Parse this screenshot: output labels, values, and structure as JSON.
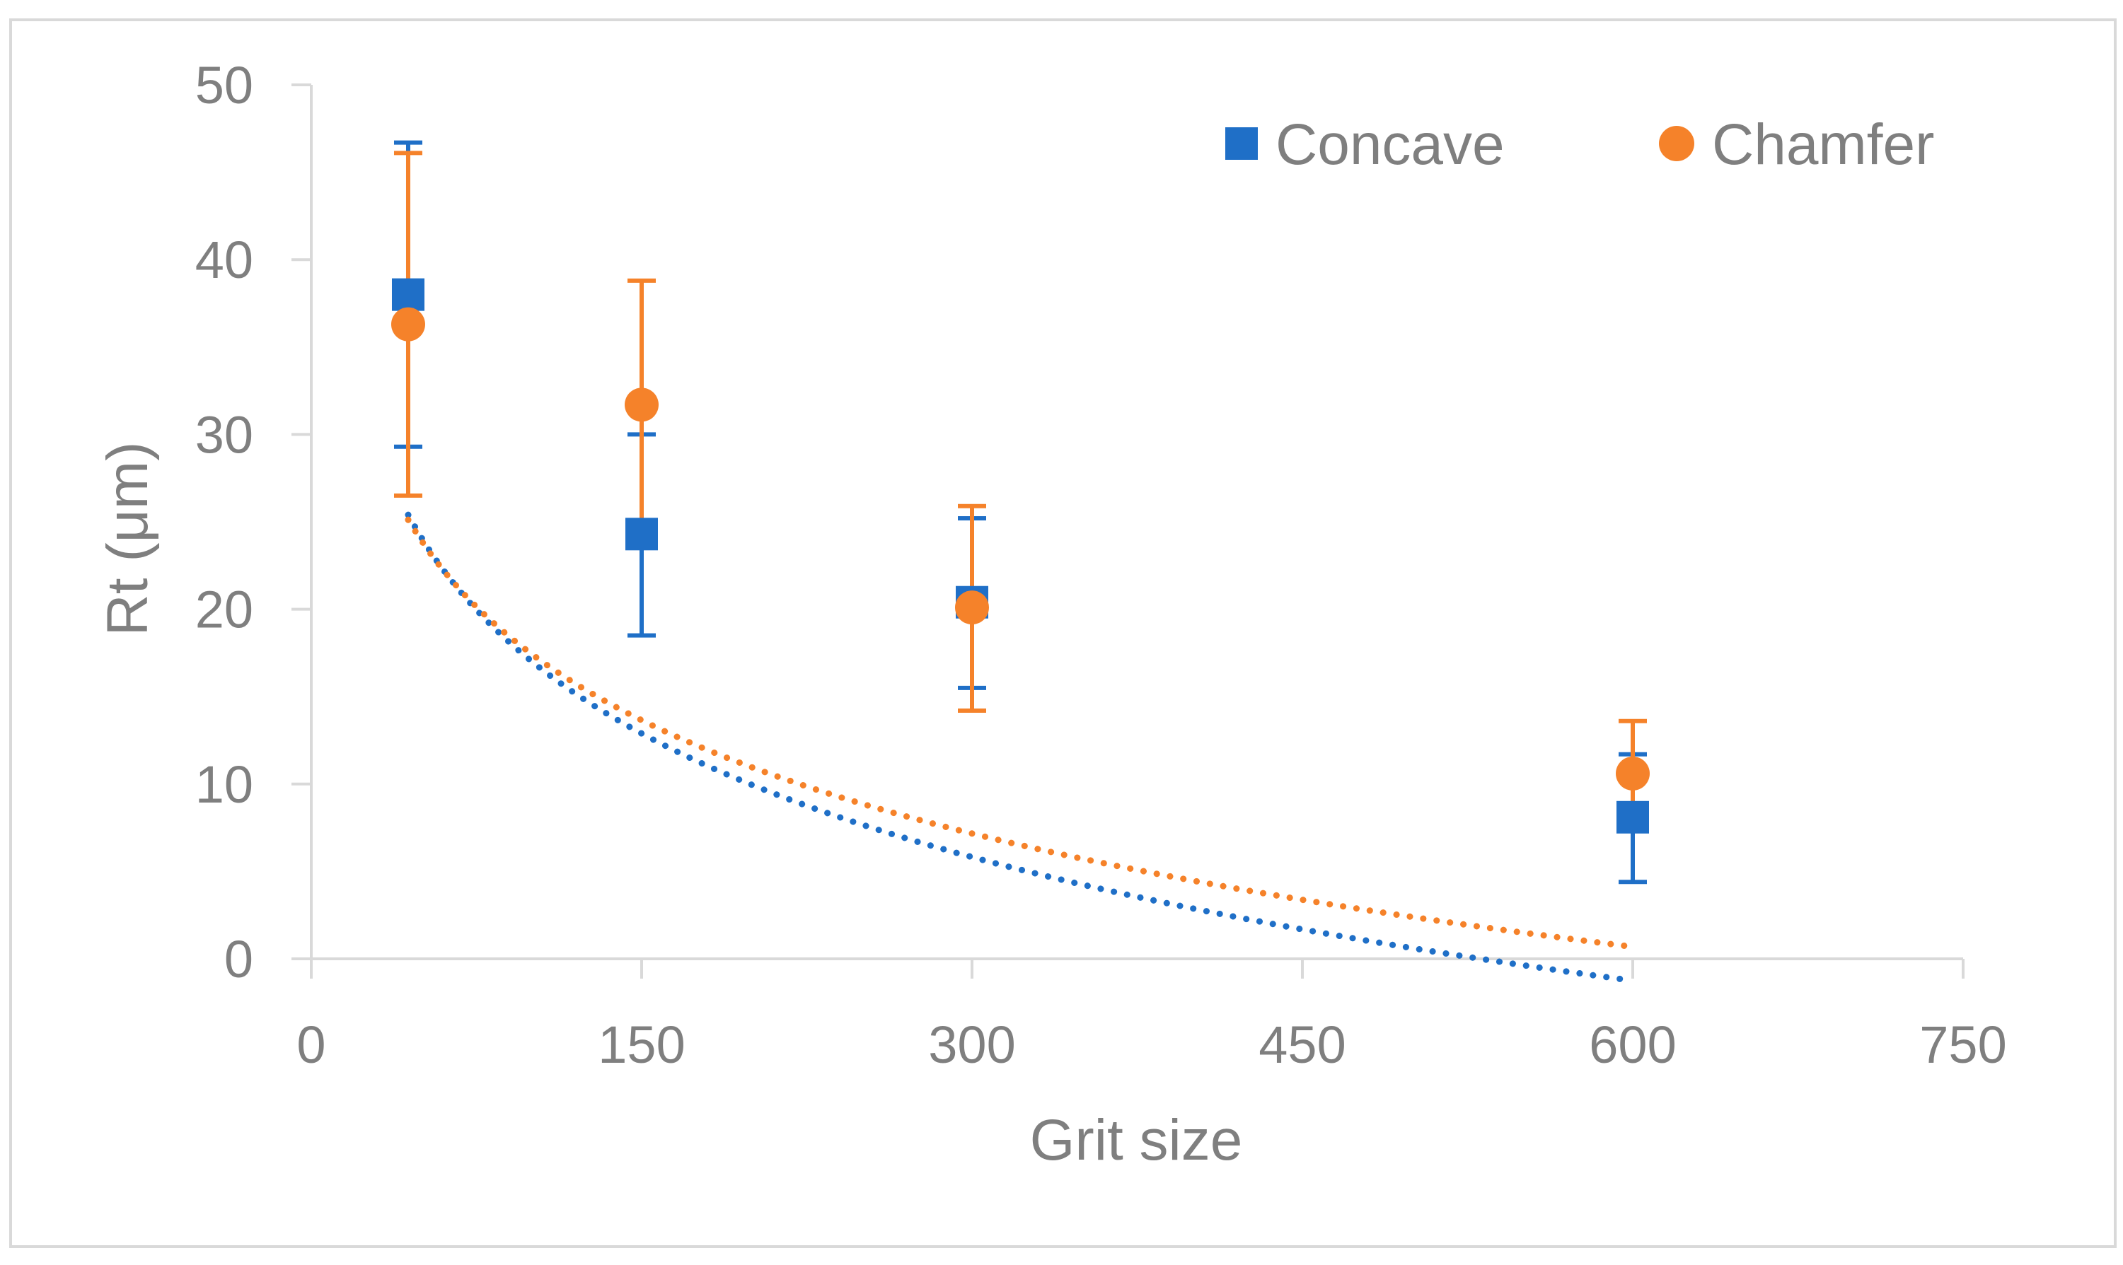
{
  "chart_data": {
    "type": "scatter",
    "title": "",
    "xlabel": "Grit size",
    "ylabel": "Rt (μm)",
    "xlim": [
      0,
      750
    ],
    "ylim": [
      0,
      50
    ],
    "xticks": [
      0,
      150,
      300,
      450,
      600,
      750
    ],
    "yticks": [
      0,
      10,
      20,
      30,
      40,
      50
    ],
    "xtick_labels": [
      "0",
      "150",
      "300",
      "450",
      "600",
      "750"
    ],
    "ytick_labels": [
      "0",
      "10",
      "20",
      "30",
      "40",
      "50"
    ],
    "grid": false,
    "legend_position": "top-right",
    "series": [
      {
        "name": "Concave",
        "marker": "square",
        "color": "#1f6fc7",
        "x": [
          44,
          150,
          300,
          600
        ],
        "y": [
          38.0,
          24.3,
          20.4,
          8.1
        ],
        "error_lower": [
          29.3,
          18.5,
          15.5,
          4.4
        ],
        "error_upper": [
          46.7,
          30.0,
          25.2,
          11.7
        ],
        "trendline": {
          "type": "logarithmic",
          "a": 64.0,
          "b": -10.2
        }
      },
      {
        "name": "Chamfer",
        "marker": "circle",
        "color": "#f5822a",
        "x": [
          44,
          150,
          300,
          600
        ],
        "y": [
          36.3,
          31.7,
          20.1,
          10.6
        ],
        "error_lower": [
          26.5,
          24.5,
          14.2,
          7.6
        ],
        "error_upper": [
          46.1,
          38.8,
          25.9,
          13.6
        ],
        "trendline": {
          "type": "logarithmic",
          "a": 60.5,
          "b": -9.35
        }
      }
    ]
  }
}
